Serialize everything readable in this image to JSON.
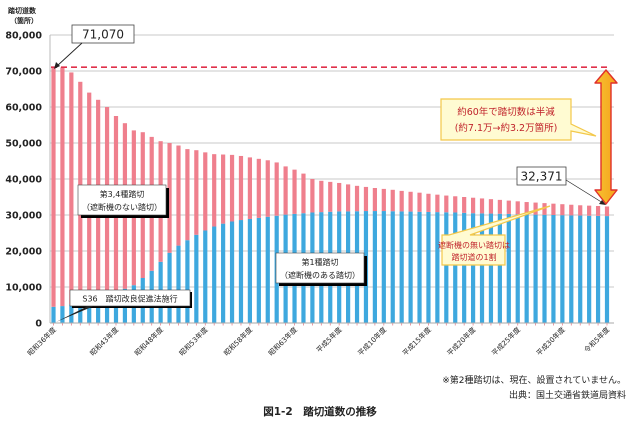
{
  "chart_data": {
    "type": "bar",
    "stacked": true,
    "title": "図1-2　踏切道数の推移",
    "ylabel": "踏切道数\n（箇所）",
    "ylabel_lines": [
      "踏切道数",
      "（箇所）"
    ],
    "xlabel": "",
    "ylim": [
      0,
      80000
    ],
    "yticks": [
      0,
      10000,
      20000,
      30000,
      40000,
      50000,
      60000,
      70000,
      80000
    ],
    "ytick_labels": [
      "0",
      "10,000",
      "20,000",
      "30,000",
      "40,000",
      "50,000",
      "60,000",
      "70,000",
      "80,000"
    ],
    "grid": true,
    "categories_start_year": 1961,
    "category_count": 63,
    "tick_labels": [
      {
        "index": 0,
        "label": "昭和36年度"
      },
      {
        "index": 7,
        "label": "昭和43年度"
      },
      {
        "index": 12,
        "label": "昭和48年度"
      },
      {
        "index": 17,
        "label": "昭和53年度"
      },
      {
        "index": 22,
        "label": "昭和58年度"
      },
      {
        "index": 27,
        "label": "昭和63年度"
      },
      {
        "index": 32,
        "label": "平成5年度"
      },
      {
        "index": 37,
        "label": "平成10年度"
      },
      {
        "index": 42,
        "label": "平成15年度"
      },
      {
        "index": 47,
        "label": "平成20年度"
      },
      {
        "index": 52,
        "label": "平成25年度"
      },
      {
        "index": 57,
        "label": "平成30年度"
      },
      {
        "index": 62,
        "label": "令和5年度"
      }
    ],
    "series": [
      {
        "name": "第1種踏切（遮断機のある踏切）",
        "color": "#3ea8de",
        "values": [
          4500,
          4700,
          5200,
          5800,
          6500,
          7300,
          8000,
          9000,
          9500,
          10500,
          12500,
          14500,
          17000,
          19500,
          21500,
          23000,
          24500,
          25700,
          26800,
          27600,
          28200,
          28600,
          28900,
          29200,
          29500,
          29800,
          30100,
          30300,
          30500,
          30700,
          30800,
          30900,
          31000,
          31000,
          31050,
          31100,
          31100,
          31100,
          31050,
          31000,
          30950,
          30900,
          30850,
          30800,
          30750,
          30700,
          30600,
          30500,
          30450,
          30400,
          30350,
          30300,
          30200,
          30150,
          30100,
          30050,
          30000,
          29950,
          29900,
          29850,
          29800,
          29750,
          29700
        ]
      },
      {
        "name": "第3,4種踏切（遮断機のない踏切）",
        "color": "#ef7f8d",
        "values": [
          66570,
          66300,
          64400,
          61200,
          57500,
          54700,
          52000,
          48500,
          46000,
          43000,
          40500,
          37200,
          33500,
          30500,
          27800,
          25300,
          23500,
          21700,
          20100,
          19200,
          18500,
          17800,
          17100,
          16400,
          15700,
          14800,
          13400,
          12300,
          11000,
          9300,
          8700,
          8300,
          7900,
          7500,
          7050,
          6700,
          6400,
          6150,
          5950,
          5700,
          5500,
          5300,
          5050,
          4850,
          4650,
          4500,
          4400,
          4300,
          4150,
          4000,
          3850,
          3700,
          3600,
          3450,
          3350,
          3250,
          3150,
          3050,
          2950,
          2850,
          2800,
          2750,
          2671
        ]
      }
    ],
    "annotations": {
      "start_value_label": "71,070",
      "end_value_label": "32,371",
      "reference_line_value": 71070,
      "series_label_1": [
        "第3,4種踏切",
        "（遮断機のない踏切）"
      ],
      "series_label_2": [
        "第1種踏切",
        "（遮断機のある踏切）"
      ],
      "law_note": "S36　踏切改良促進法施行",
      "callout_halved": [
        "約60年で踏切数は半減",
        "(約7.1万→約3.2万箇所)"
      ],
      "callout_unguarded": [
        "遮断機の無い踏切は",
        "踏切道の1割"
      ]
    },
    "footnote": "※第2種踏切は、現在、設置されていません。",
    "source": "出典：国土交通省鉄道局資料"
  }
}
